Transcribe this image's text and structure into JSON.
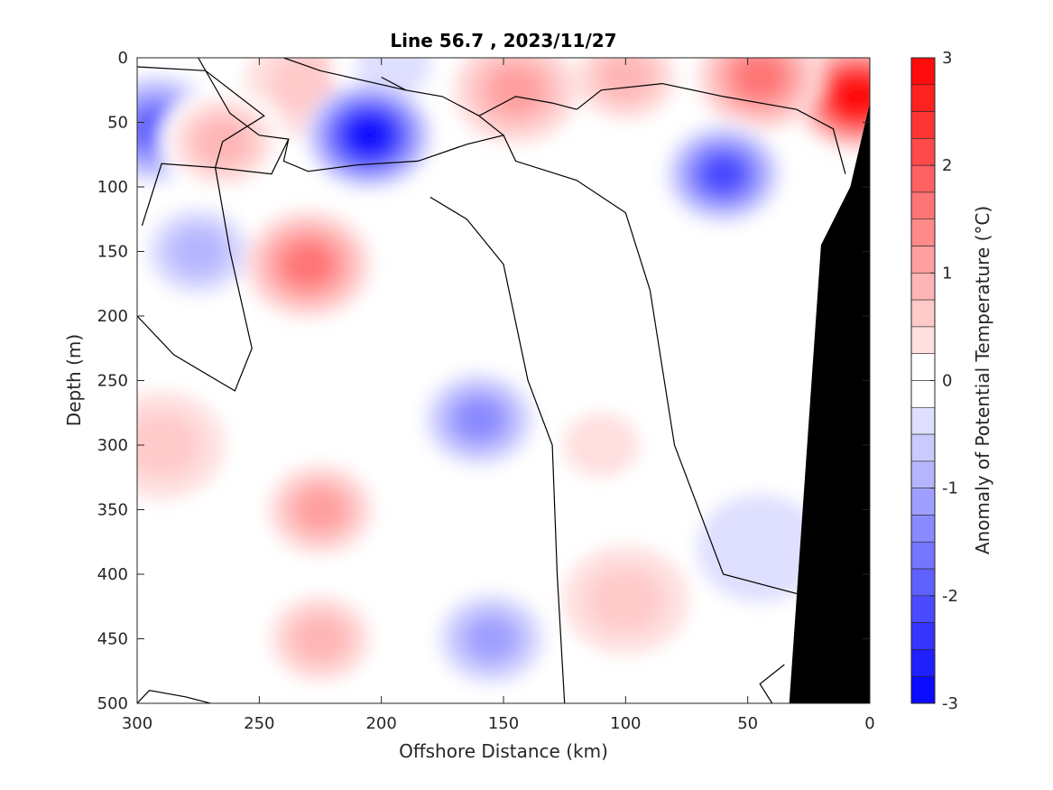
{
  "chart_data": {
    "type": "heatmap",
    "title": "Line 56.7 , 2023/11/27",
    "xlabel": "Offshore Distance (km)",
    "ylabel": "Depth (m)",
    "colorbar_label": "Anomaly of Potential Temperature (°C)",
    "xlim": [
      300,
      0
    ],
    "ylim": [
      500,
      0
    ],
    "x_reversed": true,
    "y_reversed": true,
    "x_ticks": [
      300,
      250,
      200,
      150,
      100,
      50,
      0
    ],
    "x_tick_labels": [
      "300",
      "250",
      "200",
      "150",
      "100",
      "50",
      "0"
    ],
    "y_ticks": [
      0,
      50,
      100,
      150,
      200,
      250,
      300,
      350,
      400,
      450,
      500
    ],
    "y_tick_labels": [
      "0",
      "50",
      "100",
      "150",
      "200",
      "250",
      "300",
      "350",
      "400",
      "450",
      "500"
    ],
    "colorbar_range": [
      -3,
      3
    ],
    "colorbar_ticks": [
      3,
      2,
      1,
      0,
      -1,
      -2,
      -3
    ],
    "colorbar_tick_labels": [
      "3",
      "2",
      "1",
      "0",
      "-1",
      "-2",
      "-3"
    ],
    "colorbar_levels": 24,
    "colormap": {
      "negative": "#0000ff",
      "zero": "#ffffff",
      "positive": "#ff0000"
    },
    "contour_level": 0,
    "contour_color": "#000000",
    "land_color": "#000000",
    "anomaly_features": [
      {
        "name": "nearshore surface warm core",
        "x": 5,
        "depth": 30,
        "value": 3.0
      },
      {
        "name": "surface warm band",
        "x": 45,
        "depth": 15,
        "value": 1.6
      },
      {
        "name": "surface warm band",
        "x": 100,
        "depth": 15,
        "value": 0.9
      },
      {
        "name": "surface warm band",
        "x": 145,
        "depth": 25,
        "value": 1.0
      },
      {
        "name": "surface warm patch",
        "x": 230,
        "depth": 20,
        "value": 0.6
      },
      {
        "name": "surface cool patch",
        "x": 195,
        "depth": 5,
        "value": -0.4
      },
      {
        "name": "nearshore subsurface cold core",
        "x": 60,
        "depth": 90,
        "value": -2.2
      },
      {
        "name": "subsurface cold lens",
        "x": 205,
        "depth": 60,
        "value": -2.8
      },
      {
        "name": "offshore cold lens",
        "x": 292,
        "depth": 55,
        "value": -1.8
      },
      {
        "name": "offshore cold tongue",
        "x": 275,
        "depth": 150,
        "value": -1.0
      },
      {
        "name": "small warm patch",
        "x": 265,
        "depth": 65,
        "value": 0.9
      },
      {
        "name": "deep warm column",
        "x": 230,
        "depth": 160,
        "value": 1.6
      },
      {
        "name": "deep warm column",
        "x": 225,
        "depth": 350,
        "value": 1.2
      },
      {
        "name": "deep warm column",
        "x": 225,
        "depth": 450,
        "value": 0.9
      },
      {
        "name": "deep cold column",
        "x": 160,
        "depth": 280,
        "value": -1.4
      },
      {
        "name": "deep cold column",
        "x": 155,
        "depth": 450,
        "value": -1.2
      },
      {
        "name": "mid warm column",
        "x": 110,
        "depth": 300,
        "value": 0.4
      },
      {
        "name": "deep warm patch",
        "x": 100,
        "depth": 420,
        "value": 0.6
      },
      {
        "name": "offshore deep warm",
        "x": 290,
        "depth": 300,
        "value": 0.6
      },
      {
        "name": "shelf cool patch",
        "x": 45,
        "depth": 380,
        "value": -0.3
      }
    ],
    "land_profile": [
      [
        0,
        35
      ],
      [
        8,
        100
      ],
      [
        20,
        145
      ],
      [
        33,
        500
      ]
    ],
    "zero_contours": [
      [
        [
          300,
          7
        ],
        [
          272,
          10
        ],
        [
          248,
          45
        ],
        [
          265,
          65
        ],
        [
          268,
          85
        ],
        [
          290,
          82
        ],
        [
          298,
          130
        ]
      ],
      [
        [
          300,
          200
        ],
        [
          285,
          230
        ],
        [
          260,
          258
        ],
        [
          253,
          225
        ],
        [
          262,
          150
        ],
        [
          268,
          85
        ]
      ],
      [
        [
          268,
          85
        ],
        [
          245,
          90
        ],
        [
          238,
          63
        ],
        [
          250,
          60
        ],
        [
          262,
          43
        ],
        [
          275,
          0
        ]
      ],
      [
        [
          238,
          63
        ],
        [
          240,
          80
        ],
        [
          230,
          88
        ],
        [
          210,
          83
        ],
        [
          185,
          80
        ],
        [
          165,
          67
        ],
        [
          150,
          60
        ],
        [
          160,
          45
        ],
        [
          175,
          30
        ],
        [
          190,
          25
        ],
        [
          200,
          15
        ]
      ],
      [
        [
          150,
          60
        ],
        [
          145,
          80
        ],
        [
          120,
          95
        ],
        [
          100,
          120
        ],
        [
          90,
          180
        ],
        [
          80,
          300
        ],
        [
          60,
          400
        ],
        [
          20,
          420
        ],
        [
          10,
          440
        ]
      ],
      [
        [
          190,
          25
        ],
        [
          225,
          10
        ],
        [
          240,
          0
        ]
      ],
      [
        [
          120,
          40
        ],
        [
          130,
          35
        ],
        [
          145,
          30
        ],
        [
          160,
          45
        ]
      ],
      [
        [
          120,
          40
        ],
        [
          110,
          25
        ],
        [
          85,
          20
        ],
        [
          60,
          30
        ],
        [
          30,
          40
        ],
        [
          15,
          55
        ],
        [
          10,
          90
        ]
      ],
      [
        [
          180,
          108
        ],
        [
          165,
          125
        ],
        [
          150,
          160
        ],
        [
          140,
          250
        ],
        [
          130,
          300
        ],
        [
          128,
          400
        ],
        [
          125,
          500
        ]
      ],
      [
        [
          300,
          500
        ],
        [
          295,
          490
        ],
        [
          280,
          495
        ],
        [
          270,
          500
        ]
      ],
      [
        [
          40,
          500
        ],
        [
          45,
          485
        ],
        [
          35,
          470
        ]
      ]
    ]
  }
}
